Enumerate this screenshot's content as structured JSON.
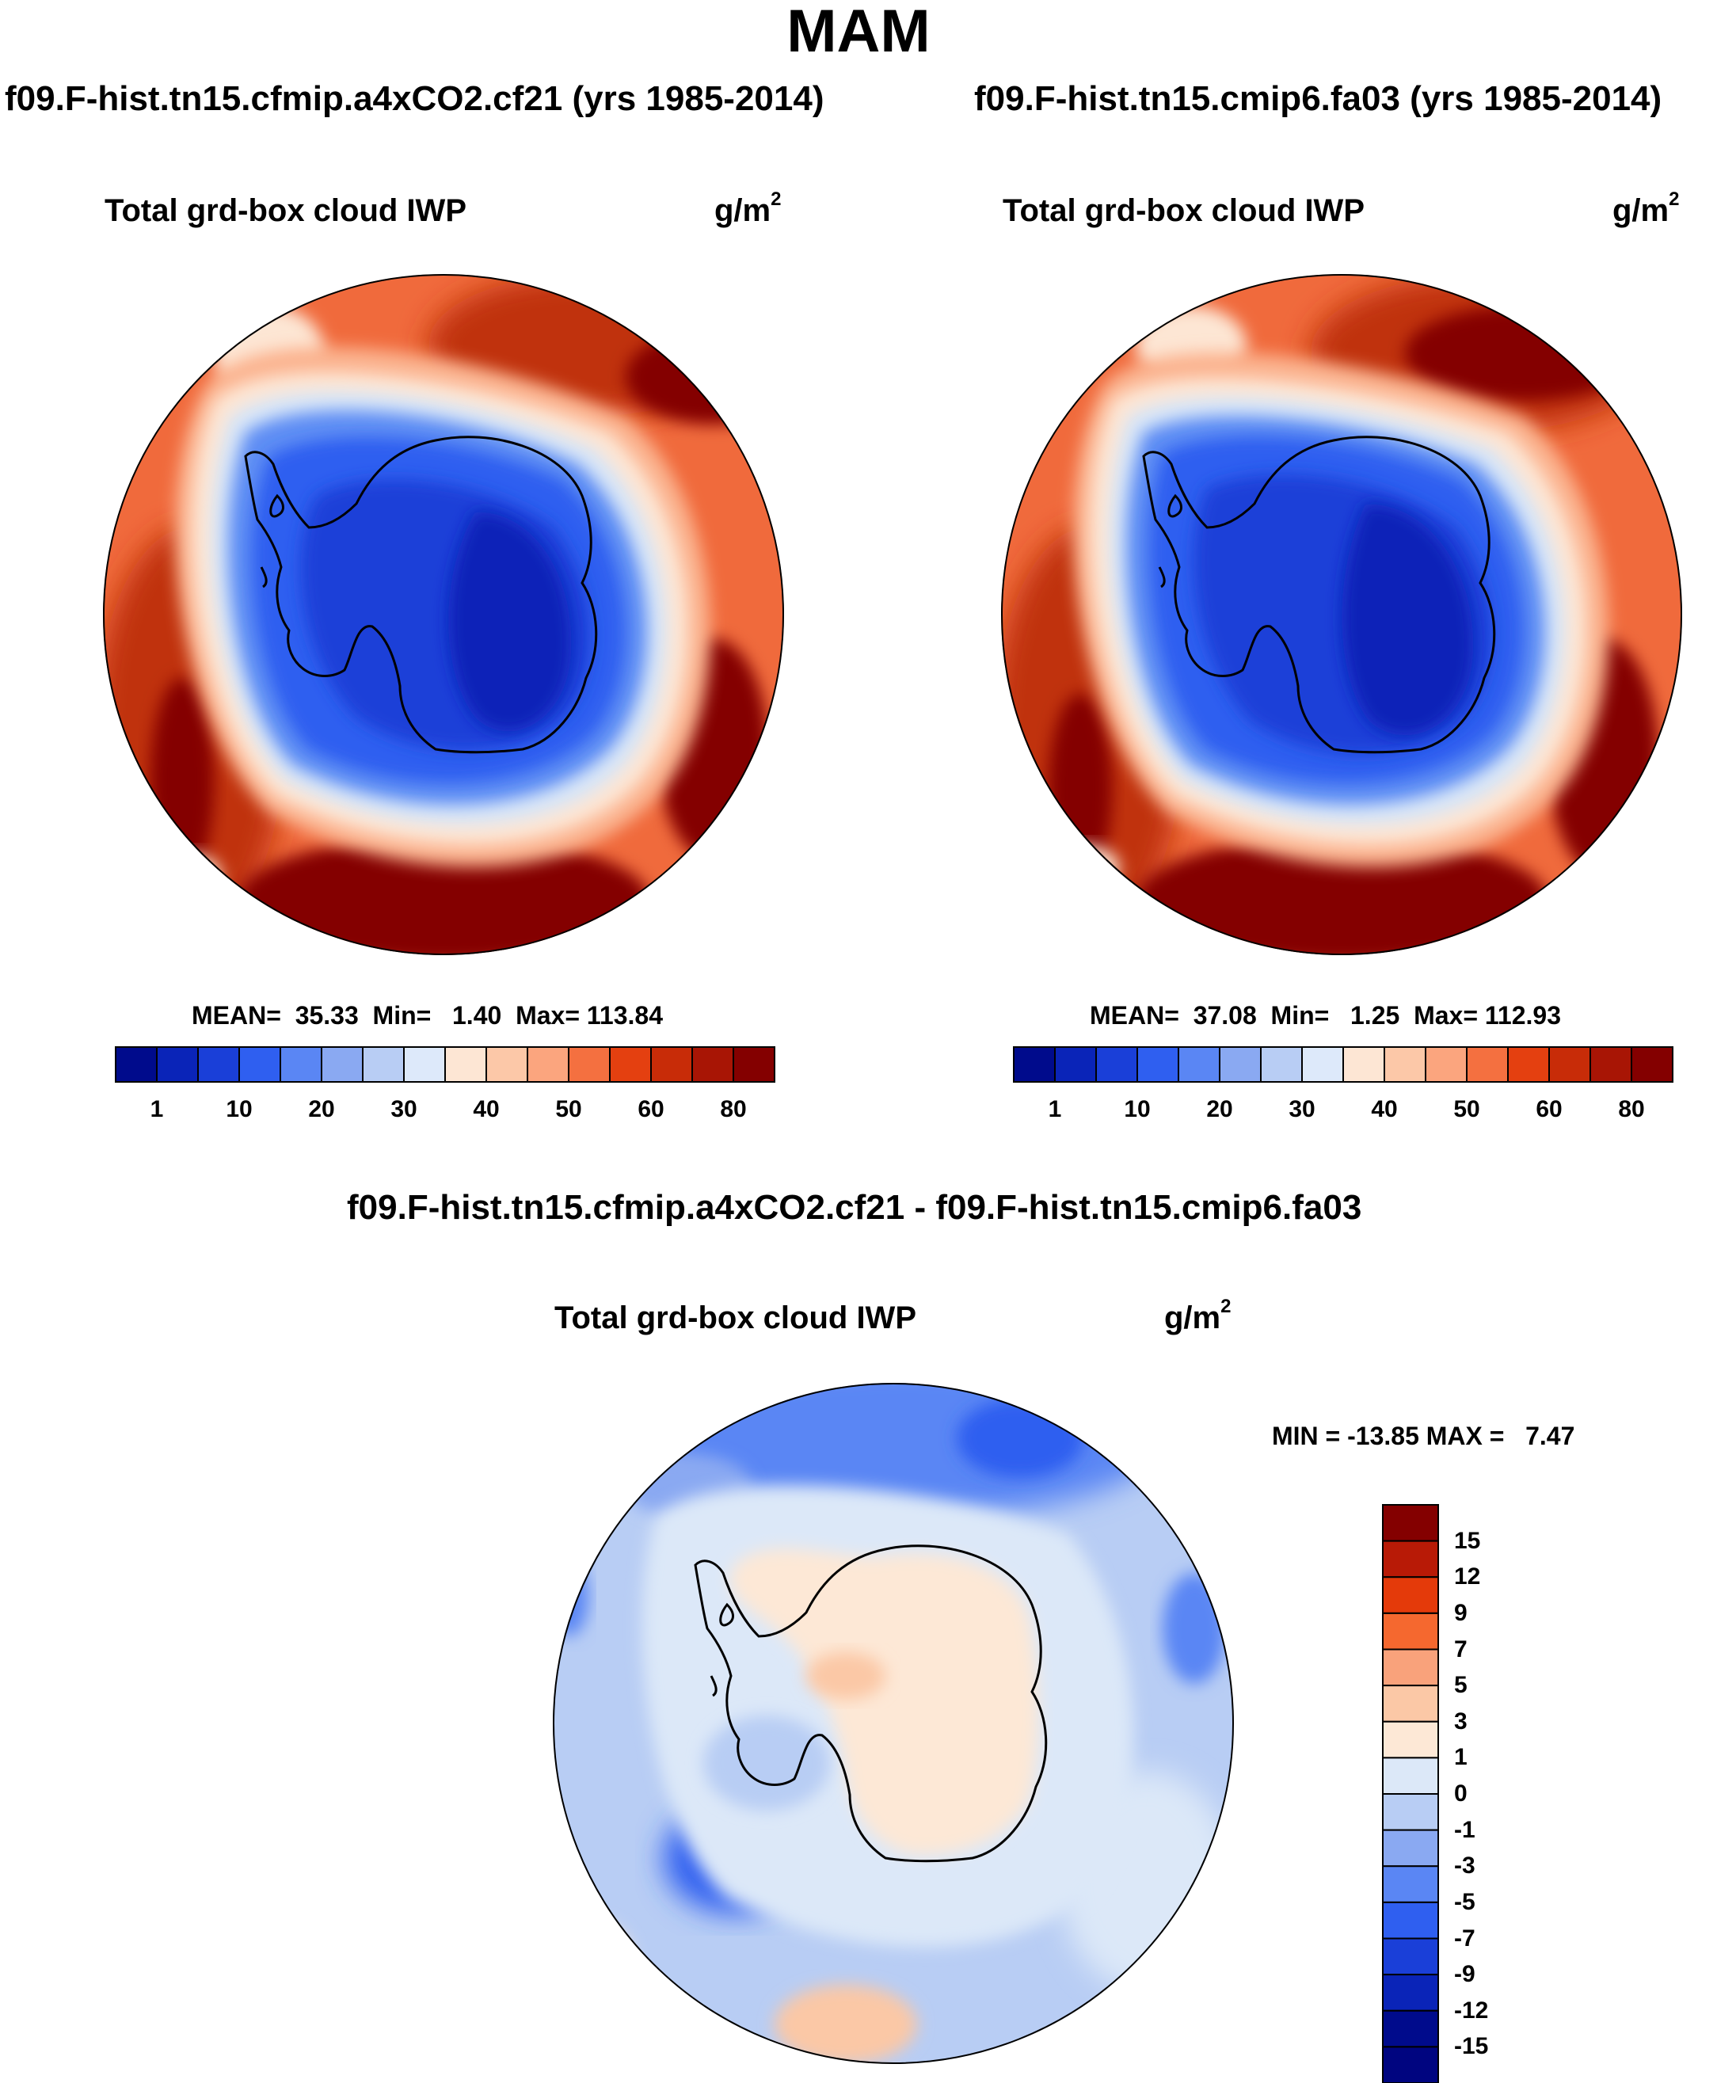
{
  "header": {
    "season": "MAM"
  },
  "panels": [
    {
      "case_title": "f09.F-hist.tn15.cfmip.a4xCO2.cf21 (yrs 1985-2014)",
      "variable": "Total grd-box cloud IWP",
      "units": "g/m",
      "units_sup": "2",
      "stats": "MEAN=  35.33  Min=   1.40  Max= 113.84"
    },
    {
      "case_title": "f09.F-hist.tn15.cmip6.fa03 (yrs 1985-2014)",
      "variable": "Total grd-box cloud IWP",
      "units": "g/m",
      "units_sup": "2",
      "stats": "MEAN=  37.08  Min=   1.25  Max= 112.93"
    }
  ],
  "diff_panel": {
    "case_title": "f09.F-hist.tn15.cfmip.a4xCO2.cf21 - f09.F-hist.tn15.cmip6.fa03",
    "variable": "Total grd-box cloud IWP",
    "units": "g/m",
    "units_sup": "2",
    "stats": "MIN = -13.85 MAX =   7.47"
  },
  "colorbar_abs": {
    "colors": [
      "#000b8c",
      "#0a24b8",
      "#1a3fd8",
      "#2f5ff0",
      "#5a86f4",
      "#8aa9f2",
      "#b8cdf4",
      "#dde9fa",
      "#fde6d4",
      "#fcc8a8",
      "#fba57e",
      "#f47040",
      "#e44010",
      "#c82c08",
      "#a81505",
      "#840000"
    ],
    "labels": [
      "1",
      "10",
      "20",
      "30",
      "40",
      "50",
      "60",
      "80"
    ]
  },
  "colorbar_diff": {
    "colors": [
      "#840000",
      "#b81a06",
      "#e43a0a",
      "#f5682f",
      "#f9a27b",
      "#fbc8a6",
      "#fde8d6",
      "#dce8f8",
      "#b8cdf4",
      "#8aa9f2",
      "#5a86f4",
      "#2f5ff0",
      "#1a3fd8",
      "#0a24b8",
      "#000b8c"
    ],
    "labels": [
      "15",
      "12",
      "9",
      "7",
      "5",
      "3",
      "1",
      "0",
      "-1",
      "-3",
      "-5",
      "-7",
      "-9",
      "-12",
      "-15"
    ]
  },
  "map_colors": {
    "abs_ocean_far": "#c0310a",
    "abs_ocean_mid": "#f06a3c",
    "abs_ocean_near": "#fbb28e",
    "abs_ring_light": "#fde6d4",
    "abs_ring_pale": "#d8e6f8",
    "abs_ice_outer": "#5f8ef4",
    "abs_ice_mid": "#2f5ff0",
    "abs_ice_inner": "#1a3fd8",
    "abs_ice_core": "#0a24b8",
    "abs_hot": "#840000",
    "diff_base": "#b8cdf4",
    "diff_pale": "#dce8f8",
    "diff_pos": "#fde8d6",
    "diff_pos2": "#fbc8a6",
    "diff_neg": "#8aa9f2",
    "diff_neg2": "#5a86f4",
    "diff_neg3": "#2f5ff0",
    "coast": "#000000"
  }
}
